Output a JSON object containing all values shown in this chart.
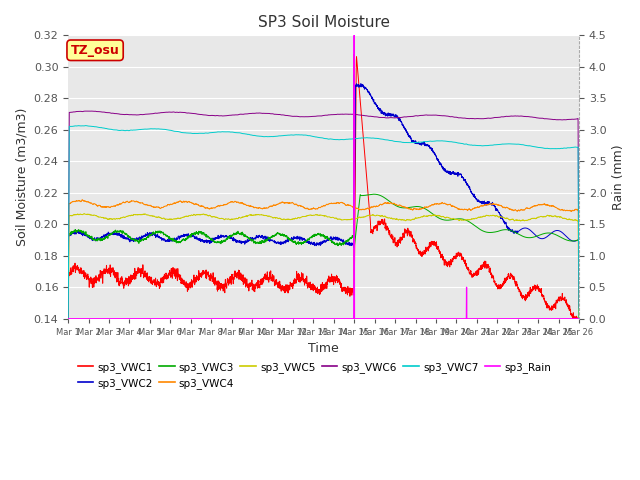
{
  "title": "SP3 Soil Moisture",
  "xlabel": "Time",
  "ylabel_left": "Soil Moisture (m3/m3)",
  "ylabel_right": "Rain (mm)",
  "ylim_left": [
    0.14,
    0.32
  ],
  "ylim_right": [
    0.0,
    4.5
  ],
  "background_color": "#e8e8e8",
  "annotation_text": "TZ_osu",
  "annotation_color": "#cc0000",
  "annotation_bg": "#ffff99",
  "series_colors": {
    "sp3_VWC1": "#ff0000",
    "sp3_VWC2": "#0000cc",
    "sp3_VWC3": "#00aa00",
    "sp3_VWC4": "#ff8800",
    "sp3_VWC5": "#cccc00",
    "sp3_VWC6": "#880088",
    "sp3_VWC7": "#00cccc",
    "sp3_Rain": "#ff00ff"
  },
  "rain_spike_day": 14.0,
  "rain_spike2_day": 19.5,
  "tick_days": [
    1,
    2,
    3,
    4,
    5,
    6,
    7,
    8,
    9,
    10,
    11,
    12,
    13,
    14,
    15,
    16,
    17,
    18,
    19,
    20,
    21,
    22,
    23,
    24,
    25,
    26
  ]
}
